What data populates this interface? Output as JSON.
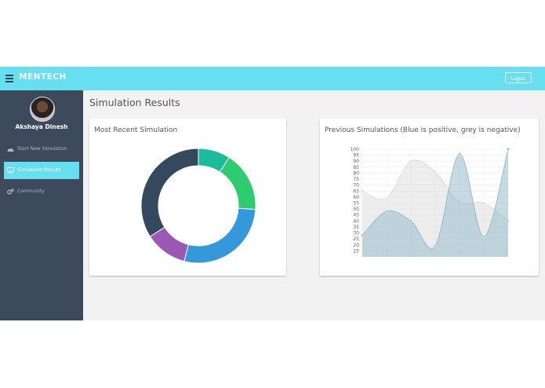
{
  "header": {
    "brand": "MENTECH",
    "logout_label": "Logout",
    "color": "#66dff0"
  },
  "sidebar": {
    "user_name": "Akshaya Dinesh",
    "items": [
      {
        "label": "Start New Simulation",
        "icon": "dashboard-icon",
        "active": false
      },
      {
        "label": "Simulation Results",
        "icon": "monitor-icon",
        "active": true
      },
      {
        "label": "Community",
        "icon": "gears-icon",
        "active": false
      }
    ]
  },
  "main": {
    "title": "Simulation Results",
    "cards": [
      {
        "title": "Most Recent Simulation"
      },
      {
        "title": "Previous Simulations (Blue is positive, grey is negative)"
      }
    ]
  },
  "chart_data": [
    {
      "type": "pie",
      "donut": true,
      "values": [
        9,
        17,
        28,
        12,
        34
      ],
      "colors": [
        "#1abc9c",
        "#2ecc71",
        "#3498db",
        "#9b59b6",
        "#34495e"
      ]
    },
    {
      "type": "area",
      "ylim": [
        10,
        100
      ],
      "yticks": [
        15,
        20,
        25,
        30,
        35,
        40,
        45,
        50,
        55,
        60,
        65,
        70,
        75,
        80,
        85,
        90,
        95,
        100
      ],
      "grid": true,
      "series": [
        {
          "values": [
            65,
            59,
            90,
            81,
            56,
            55,
            40
          ],
          "color": "#dcdcdc"
        },
        {
          "values": [
            28,
            48,
            40,
            19,
            96,
            27,
            100
          ],
          "color": "#97bbcd"
        }
      ]
    }
  ]
}
